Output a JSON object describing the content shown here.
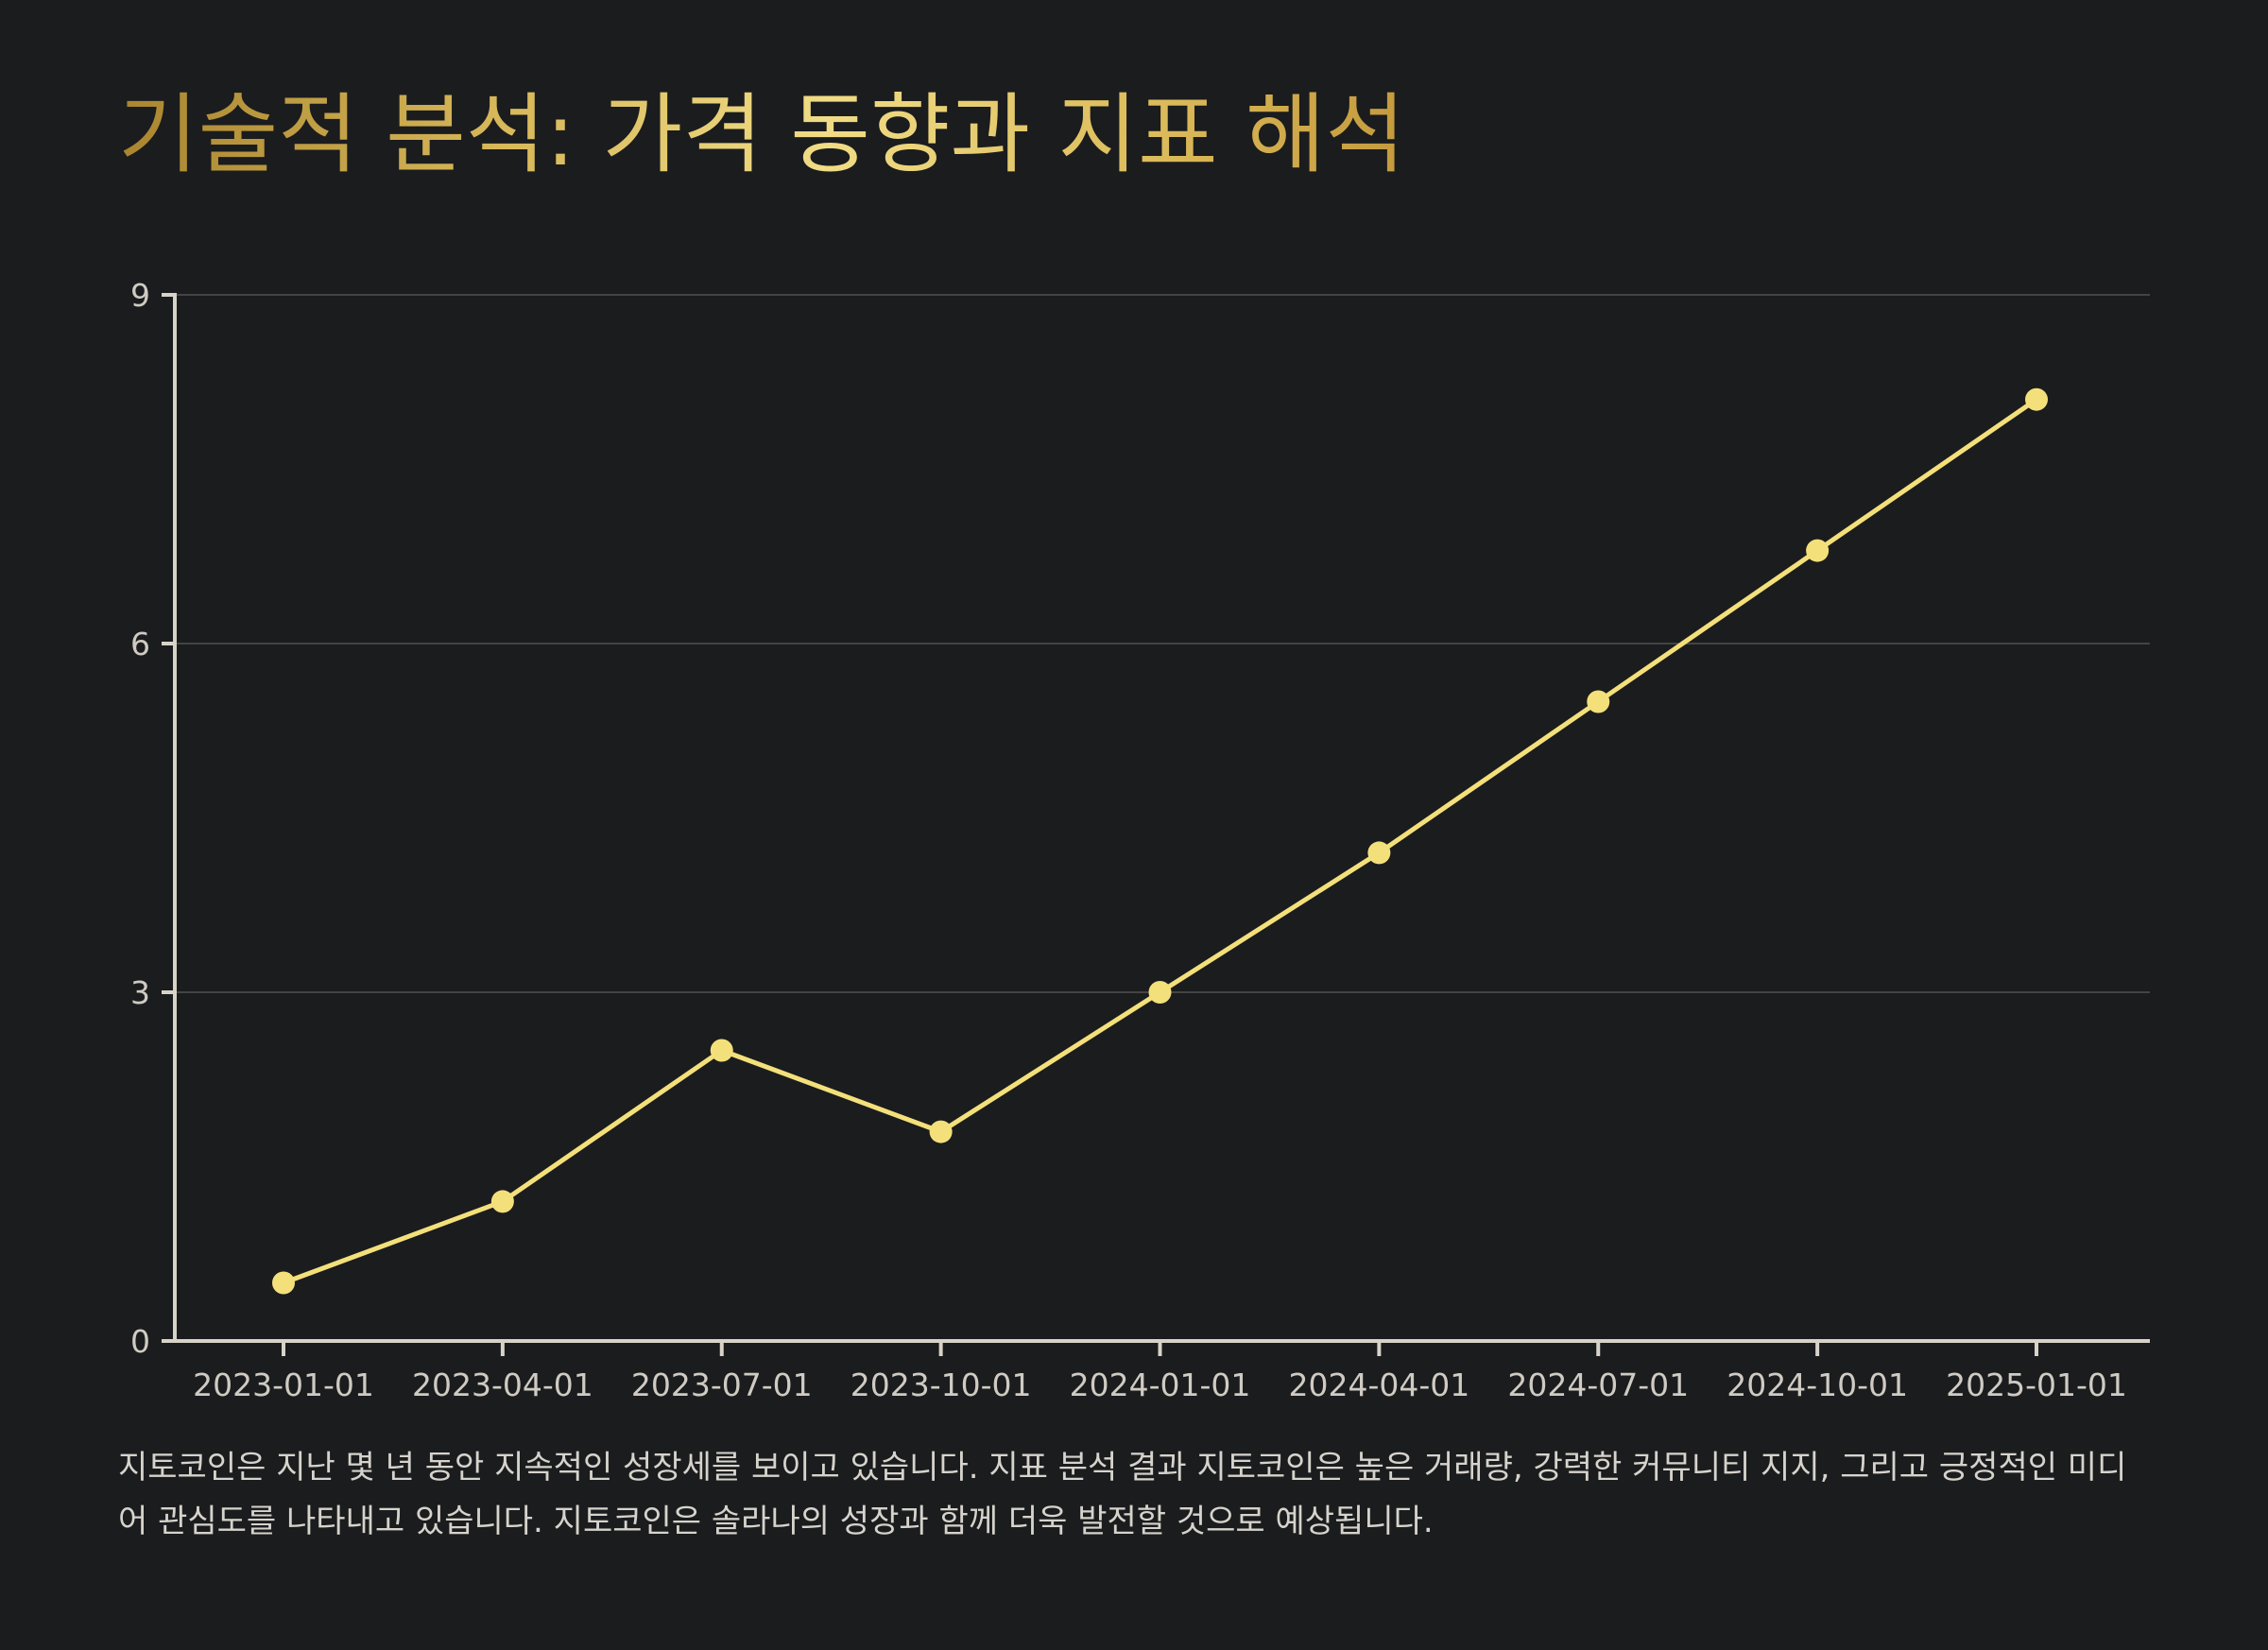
{
  "title": "기술적 분석: 가격 동향과 지표 해석",
  "description": "지토코인은 지난 몇 년 동안 지속적인 성장세를 보이고 있습니다. 지표 분석 결과 지토코인은 높은 거래량, 강력한 커뮤니티 지지, 그리고 긍정적인 미디어 관심도를 나타내고 있습니다. 지토코인은 솔라나의 성장과 함께 더욱 발전할 것으로 예상됩니다.",
  "colors": {
    "background": "#1b1c1e",
    "line": "#f4e07a",
    "axis": "#d8d3c8",
    "grid": "#444444",
    "tick_text": "#cfcbc3",
    "description_text": "#d6d3cc"
  },
  "chart_data": {
    "type": "line",
    "title": "",
    "xlabel": "",
    "ylabel": "",
    "x": [
      "2023-01-01",
      "2023-04-01",
      "2023-07-01",
      "2023-10-01",
      "2024-01-01",
      "2024-04-01",
      "2024-07-01",
      "2024-10-01",
      "2025-01-01"
    ],
    "series": [
      {
        "values": [
          0.5,
          1.2,
          2.5,
          1.8,
          3.0,
          4.2,
          5.5,
          6.8,
          8.1
        ]
      }
    ],
    "ylim": [
      0,
      9
    ],
    "yticks": [
      0,
      3,
      6,
      9
    ],
    "grid": "horizontal",
    "legend": "none"
  }
}
